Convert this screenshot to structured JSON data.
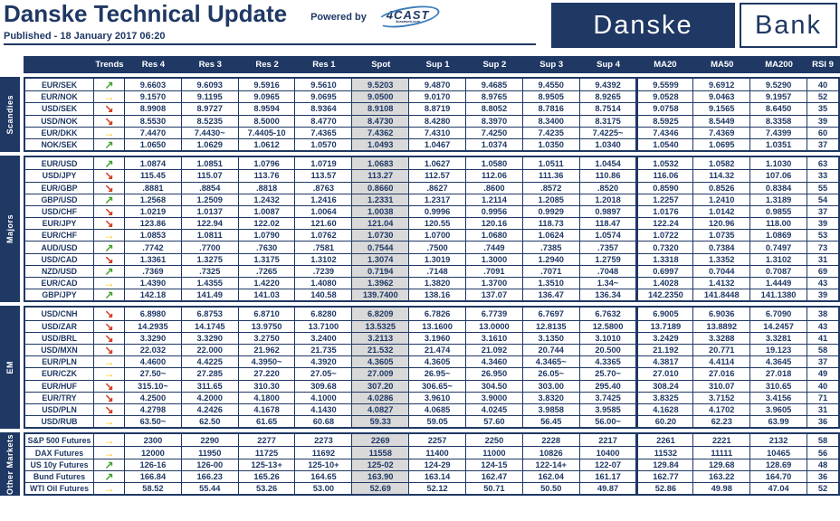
{
  "header": {
    "title": "Danske Technical Update",
    "published": "Published - 18 January 2017 06:20",
    "powered_by": "Powered by",
    "fourcast_logo": "4CAST",
    "fourcast_sub": "4castweb.com",
    "logo_danske": "Danske",
    "logo_bank": "Bank"
  },
  "colors": {
    "navy": "#1F3864",
    "spot_bg": "#D9D9D9",
    "trend_up": "#44A12F",
    "trend_flat": "#FFC000",
    "trend_down": "#D03A21"
  },
  "trends": {
    "up": {
      "glyph": "↗"
    },
    "flat": {
      "glyph": "→"
    },
    "down": {
      "glyph": "↘"
    }
  },
  "table": {
    "columns": [
      "Trends",
      "Res 4",
      "Res 3",
      "Res 2",
      "Res 1",
      "Spot",
      "Sup 1",
      "Sup 2",
      "Sup 3",
      "Sup 4",
      "MA20",
      "MA50",
      "MA200",
      "RSI 9"
    ],
    "sections": [
      {
        "label": "Scandies",
        "rows": [
          {
            "pair": "EUR/SEK",
            "trend": "up",
            "values": [
              "9.6603",
              "9.6093",
              "9.5916",
              "9.5610",
              "9.5203",
              "9.4870",
              "9.4685",
              "9.4550",
              "9.4392",
              "9.5599",
              "9.6912",
              "9.5290",
              "40"
            ]
          },
          {
            "pair": "EUR/NOK",
            "trend": "flat",
            "values": [
              "9.1570",
              "9.1195",
              "9.0965",
              "9.0695",
              "9.0500",
              "9.0170",
              "8.9765",
              "8.9505",
              "8.9265",
              "9.0528",
              "9.0463",
              "9.1957",
              "52"
            ]
          },
          {
            "pair": "USD/SEK",
            "trend": "down",
            "values": [
              "8.9908",
              "8.9727",
              "8.9594",
              "8.9364",
              "8.9108",
              "8.8719",
              "8.8052",
              "8.7816",
              "8.7514",
              "9.0758",
              "9.1565",
              "8.6450",
              "35"
            ]
          },
          {
            "pair": "USD/NOK",
            "trend": "down",
            "values": [
              "8.5530",
              "8.5235",
              "8.5000",
              "8.4770",
              "8.4730",
              "8.4280",
              "8.3970",
              "8.3400",
              "8.3175",
              "8.5925",
              "8.5449",
              "8.3358",
              "39"
            ]
          },
          {
            "pair": "EUR/DKK",
            "trend": "flat",
            "values": [
              "7.4470",
              "7.4430~",
              "7.4405-10",
              "7.4365",
              "7.4362",
              "7.4310",
              "7.4250",
              "7.4235",
              "7.4225~",
              "7.4346",
              "7.4369",
              "7.4399",
              "60"
            ]
          },
          {
            "pair": "NOK/SEK",
            "trend": "up",
            "values": [
              "1.0650",
              "1.0629",
              "1.0612",
              "1.0570",
              "1.0493",
              "1.0467",
              "1.0374",
              "1.0350",
              "1.0340",
              "1.0540",
              "1.0695",
              "1.0351",
              "37"
            ]
          }
        ]
      },
      {
        "label": "Majors",
        "rows": [
          {
            "pair": "EUR/USD",
            "trend": "up",
            "values": [
              "1.0874",
              "1.0851",
              "1.0796",
              "1.0719",
              "1.0683",
              "1.0627",
              "1.0580",
              "1.0511",
              "1.0454",
              "1.0532",
              "1.0582",
              "1.1030",
              "63"
            ]
          },
          {
            "pair": "USD/JPY",
            "trend": "down",
            "values": [
              "115.45",
              "115.07",
              "113.76",
              "113.57",
              "113.27",
              "112.57",
              "112.06",
              "111.36",
              "110.86",
              "116.06",
              "114.32",
              "107.06",
              "33"
            ]
          },
          {
            "pair": "EUR/GBP",
            "trend": "down",
            "values": [
              ".8881",
              ".8854",
              ".8818",
              ".8763",
              "0.8660",
              ".8627",
              ".8600",
              ".8572",
              ".8520",
              "0.8590",
              "0.8526",
              "0.8384",
              "55"
            ]
          },
          {
            "pair": "GBP/USD",
            "trend": "up",
            "values": [
              "1.2568",
              "1.2509",
              "1.2432",
              "1.2416",
              "1.2331",
              "1.2317",
              "1.2114",
              "1.2085",
              "1.2018",
              "1.2257",
              "1.2410",
              "1.3189",
              "54"
            ]
          },
          {
            "pair": "USD/CHF",
            "trend": "down",
            "values": [
              "1.0219",
              "1.0137",
              "1.0087",
              "1.0064",
              "1.0038",
              "0.9996",
              "0.9956",
              "0.9929",
              "0.9897",
              "1.0176",
              "1.0142",
              "0.9855",
              "37"
            ]
          },
          {
            "pair": "EUR/JPY",
            "trend": "down",
            "values": [
              "123.86",
              "122.94",
              "122.02",
              "121.60",
              "121.04",
              "120.55",
              "120.16",
              "118.73",
              "118.47",
              "122.24",
              "120.96",
              "118.00",
              "39"
            ]
          },
          {
            "pair": "EUR/CHF",
            "trend": "flat",
            "values": [
              "1.0853",
              "1.0811",
              "1.0790",
              "1.0762",
              "1.0730",
              "1.0700",
              "1.0680",
              "1.0624",
              "1.0574",
              "1.0722",
              "1.0735",
              "1.0869",
              "53"
            ]
          },
          {
            "pair": "AUD/USD",
            "trend": "up",
            "values": [
              ".7742",
              ".7700",
              ".7630",
              ".7581",
              "0.7544",
              ".7500",
              ".7449",
              ".7385",
              ".7357",
              "0.7320",
              "0.7384",
              "0.7497",
              "73"
            ]
          },
          {
            "pair": "USD/CAD",
            "trend": "down",
            "values": [
              "1.3361",
              "1.3275",
              "1.3175",
              "1.3102",
              "1.3074",
              "1.3019",
              "1.3000",
              "1.2940",
              "1.2759",
              "1.3318",
              "1.3352",
              "1.3102",
              "31"
            ]
          },
          {
            "pair": "NZD/USD",
            "trend": "up",
            "values": [
              ".7369",
              ".7325",
              ".7265",
              ".7239",
              "0.7194",
              ".7148",
              ".7091",
              ".7071",
              ".7048",
              "0.6997",
              "0.7044",
              "0.7087",
              "69"
            ]
          },
          {
            "pair": "EUR/CAD",
            "trend": "flat",
            "values": [
              "1.4390",
              "1.4355",
              "1.4220",
              "1.4080",
              "1.3962",
              "1.3820",
              "1.3700",
              "1.3510",
              "1.34~",
              "1.4028",
              "1.4132",
              "1.4449",
              "43"
            ]
          },
          {
            "pair": "GBP/JPY",
            "trend": "up",
            "values": [
              "142.18",
              "141.49",
              "141.03",
              "140.58",
              "139.7400",
              "138.16",
              "137.07",
              "136.47",
              "136.34",
              "142.2350",
              "141.8448",
              "141.1380",
              "39"
            ]
          }
        ]
      },
      {
        "label": "EM",
        "rows": [
          {
            "pair": "USD/CNH",
            "trend": "down",
            "values": [
              "6.8980",
              "6.8753",
              "6.8710",
              "6.8280",
              "6.8209",
              "6.7826",
              "6.7739",
              "6.7697",
              "6.7632",
              "6.9005",
              "6.9036",
              "6.7090",
              "38"
            ]
          },
          {
            "pair": "USD/ZAR",
            "trend": "down",
            "values": [
              "14.2935",
              "14.1745",
              "13.9750",
              "13.7100",
              "13.5325",
              "13.1600",
              "13.0000",
              "12.8135",
              "12.5800",
              "13.7189",
              "13.8892",
              "14.2457",
              "43"
            ]
          },
          {
            "pair": "USD/BRL",
            "trend": "down",
            "values": [
              "3.3290",
              "3.3290",
              "3.2750",
              "3.2400",
              "3.2113",
              "3.1960",
              "3.1610",
              "3.1350",
              "3.1010",
              "3.2429",
              "3.3288",
              "3.3281",
              "41"
            ]
          },
          {
            "pair": "USD/MXN",
            "trend": "down",
            "values": [
              "22.032",
              "22.000",
              "21.962",
              "21.735",
              "21.532",
              "21.474",
              "21.092",
              "20.744",
              "20.500",
              "21.192",
              "20.771",
              "19.123",
              "58"
            ]
          },
          {
            "pair": "EUR/PLN",
            "trend": "flat",
            "values": [
              "4.4600",
              "4.4225",
              "4.3950~",
              "4.3920",
              "4.3605",
              "4.3605",
              "4.3460",
              "4.3465~",
              "4.3365",
              "4.3817",
              "4.4114",
              "4.3645",
              "37"
            ]
          },
          {
            "pair": "EUR/CZK",
            "trend": "flat",
            "values": [
              "27.50~",
              "27.285",
              "27.220",
              "27.05~",
              "27.009",
              "26.95~",
              "26.950",
              "26.05~",
              "25.70~",
              "27.010",
              "27.016",
              "27.018",
              "49"
            ]
          },
          {
            "pair": "EUR/HUF",
            "trend": "down",
            "values": [
              "315.10~",
              "311.65",
              "310.30",
              "309.68",
              "307.20",
              "306.65~",
              "304.50",
              "303.00",
              "295.40",
              "308.24",
              "310.07",
              "310.65",
              "40"
            ]
          },
          {
            "pair": "EUR/TRY",
            "trend": "down",
            "values": [
              "4.2500",
              "4.2000",
              "4.1800",
              "4.1000",
              "4.0286",
              "3.9610",
              "3.9000",
              "3.8320",
              "3.7425",
              "3.8325",
              "3.7152",
              "3.4156",
              "71"
            ]
          },
          {
            "pair": "USD/PLN",
            "trend": "down",
            "values": [
              "4.2798",
              "4.2426",
              "4.1678",
              "4.1430",
              "4.0827",
              "4.0685",
              "4.0245",
              "3.9858",
              "3.9585",
              "4.1628",
              "4.1702",
              "3.9605",
              "31"
            ]
          },
          {
            "pair": "USD/RUB",
            "trend": "flat",
            "values": [
              "63.50~",
              "62.50",
              "61.65",
              "60.68",
              "59.33",
              "59.05",
              "57.60",
              "56.45",
              "56.00~",
              "60.20",
              "62.23",
              "63.99",
              "36"
            ]
          }
        ]
      },
      {
        "label": "Other Markets",
        "rows": [
          {
            "pair": "S&P 500 Futures",
            "trend": "flat",
            "values": [
              "2300",
              "2290",
              "2277",
              "2273",
              "2269",
              "2257",
              "2250",
              "2228",
              "2217",
              "2261",
              "2221",
              "2132",
              "58"
            ]
          },
          {
            "pair": "DAX Futures",
            "trend": "flat",
            "values": [
              "12000",
              "11950",
              "11725",
              "11692",
              "11558",
              "11400",
              "11000",
              "10826",
              "10400",
              "11532",
              "11111",
              "10465",
              "56"
            ]
          },
          {
            "pair": "US 10y Futures",
            "trend": "up",
            "values": [
              "126-16",
              "126-00",
              "125-13+",
              "125-10+",
              "125-02",
              "124-29",
              "124-15",
              "122-14+",
              "122-07",
              "129.84",
              "129.68",
              "128.69",
              "48"
            ]
          },
          {
            "pair": "Bund Futures",
            "trend": "up",
            "values": [
              "166.84",
              "166.23",
              "165.26",
              "164.65",
              "163.90",
              "163.14",
              "162.47",
              "162.04",
              "161.17",
              "162.77",
              "163.22",
              "164.70",
              "36"
            ]
          },
          {
            "pair": "WTI Oil Futures",
            "trend": "flat",
            "values": [
              "58.52",
              "55.44",
              "53.26",
              "53.00",
              "52.69",
              "52.12",
              "50.71",
              "50.50",
              "49.87",
              "52.86",
              "49.98",
              "47.04",
              "52"
            ]
          }
        ]
      }
    ]
  }
}
